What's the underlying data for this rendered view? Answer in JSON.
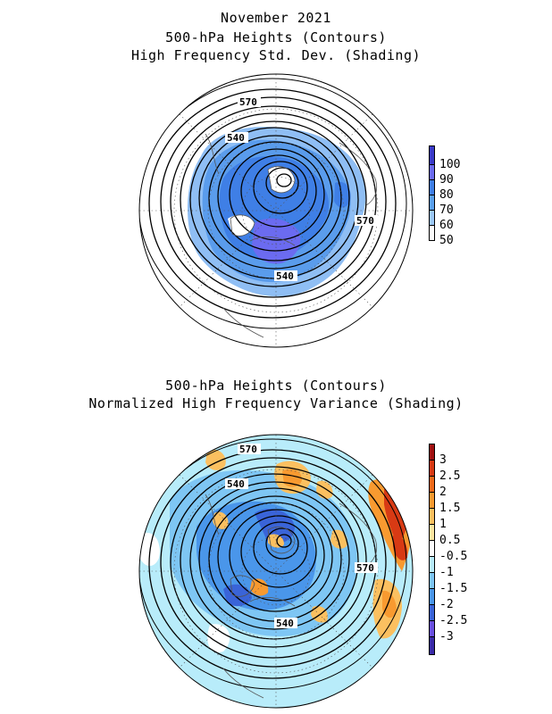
{
  "titles": {
    "line1": "November 2021",
    "line2": "500-hPa Heights (Contours)",
    "line3": "High Frequency Std. Dev. (Shading)",
    "line4": "500-hPa Heights (Contours)",
    "line5": "Normalized High Frequency Variance (Shading)"
  },
  "map1": {
    "contour_labels": [
      "570",
      "540",
      "570",
      "540"
    ],
    "colorbar": {
      "labels": [
        "100",
        "90",
        "80",
        "70",
        "60",
        "50"
      ],
      "colors": [
        "#3a3ac8",
        "#6b6bf0",
        "#3f7fe6",
        "#5aa0ee",
        "#9cc8f6",
        "#ffffff"
      ]
    }
  },
  "map2": {
    "contour_labels": [
      "570",
      "540",
      "570",
      "540"
    ],
    "colorbar": {
      "labels": [
        "3",
        "2.5",
        "2",
        "1.5",
        "1",
        "0.5",
        "-0.5",
        "-1",
        "-1.5",
        "-2",
        "-2.5",
        "-3"
      ],
      "colors": [
        "#a01010",
        "#d83a14",
        "#f06a1a",
        "#f89a30",
        "#fbc060",
        "#fde6a0",
        "#ffffff",
        "#b8ecfa",
        "#7ec6f4",
        "#4a96ea",
        "#3a64d8",
        "#6a50e0",
        "#3a2aa8"
      ]
    }
  }
}
